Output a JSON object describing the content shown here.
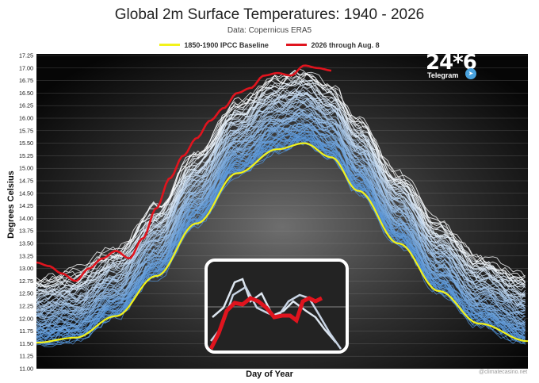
{
  "chart_data": {
    "type": "line",
    "title": "Global 2m Surface Temperatures: 1940 - 2026",
    "subtitle": "Data: Copernicus ERA5",
    "xlabel": "Day of Year",
    "ylabel": "Degrees Celsius",
    "ylim": [
      11.0,
      17.25
    ],
    "xlim": [
      1,
      366
    ],
    "yticks": [
      "17.25",
      "17.00",
      "16.75",
      "16.50",
      "16.25",
      "16.00",
      "15.75",
      "15.50",
      "15.25",
      "15.00",
      "14.75",
      "14.50",
      "14.25",
      "14.00",
      "13.75",
      "13.50",
      "13.25",
      "13.00",
      "12.75",
      "12.50",
      "12.25",
      "12.00",
      "11.75",
      "11.50",
      "11.25",
      "11.00"
    ],
    "grid": true,
    "legend_position": "top-center",
    "series": [
      {
        "name": "1850-1900 IPCC Baseline",
        "color": "#f2f21a",
        "x": [
          1,
          30,
          60,
          90,
          120,
          150,
          180,
          200,
          220,
          240,
          270,
          300,
          330,
          366
        ],
        "y": [
          11.52,
          11.62,
          12.05,
          12.85,
          13.9,
          14.9,
          15.38,
          15.5,
          15.22,
          14.55,
          13.5,
          12.55,
          11.9,
          11.55
        ]
      },
      {
        "name": "2026 through Aug. 8",
        "color": "#e0141e",
        "x": [
          1,
          10,
          20,
          30,
          40,
          50,
          60,
          70,
          80,
          90,
          100,
          110,
          120,
          130,
          140,
          150,
          160,
          170,
          180,
          190,
          200,
          210,
          220
        ],
        "y": [
          13.12,
          13.05,
          12.9,
          12.75,
          13.0,
          13.2,
          13.35,
          13.2,
          13.6,
          14.2,
          14.8,
          15.25,
          15.6,
          15.95,
          16.2,
          16.5,
          16.6,
          16.85,
          16.9,
          16.85,
          17.05,
          17.0,
          16.95
        ]
      }
    ],
    "historical_years": {
      "range": "1940 - 2025",
      "color_early": "#4f8fd4",
      "color_late": "#ffffff"
    }
  },
  "credit": "@climatecasino.net",
  "watermark": {
    "number": "24*6",
    "label": "Telegram",
    "icon": "telegram-plane-icon"
  }
}
